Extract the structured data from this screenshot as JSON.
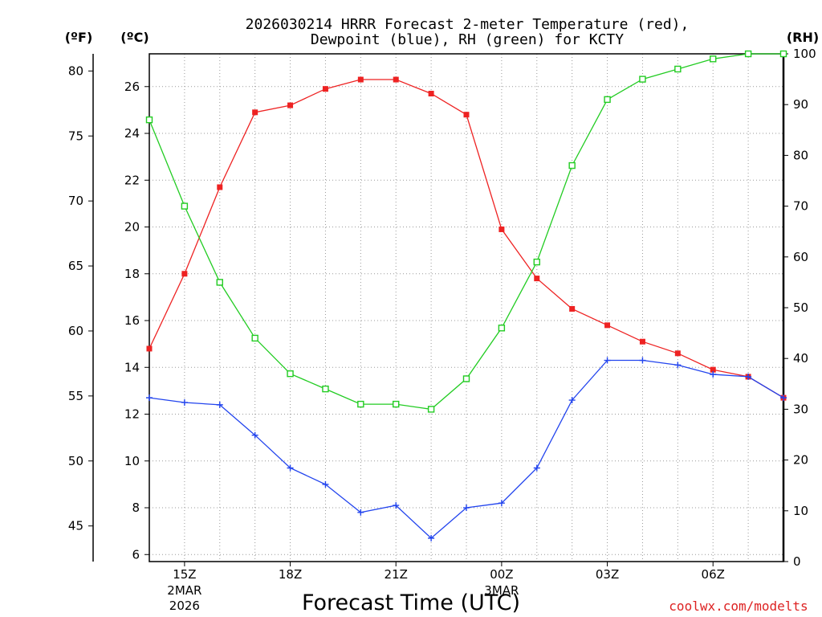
{
  "chart_data": {
    "type": "line",
    "title_line1": "2026030214 HRRR Forecast 2-meter Temperature (red),",
    "title_line2": "Dewpoint (blue), RH (green) for KCTY",
    "units": {
      "fahrenheit": "(ºF)",
      "celsius": "(ºC)",
      "rh": "(RH)"
    },
    "xlabel": "Forecast Time (UTC)",
    "credit": "coolwx.com/modelts",
    "x_hours": [
      14,
      15,
      16,
      17,
      18,
      19,
      20,
      21,
      22,
      23,
      24,
      25,
      26,
      27,
      28,
      29,
      30,
      31,
      32
    ],
    "xlim": [
      14,
      32
    ],
    "x_ticks": [
      {
        "hour": 15,
        "label": "15Z",
        "sub1": "2MAR",
        "sub2": "2026"
      },
      {
        "hour": 18,
        "label": "18Z",
        "sub1": "",
        "sub2": ""
      },
      {
        "hour": 21,
        "label": "21Z",
        "sub1": "",
        "sub2": ""
      },
      {
        "hour": 24,
        "label": "00Z",
        "sub1": "3MAR",
        "sub2": ""
      },
      {
        "hour": 27,
        "label": "03Z",
        "sub1": "",
        "sub2": ""
      },
      {
        "hour": 30,
        "label": "06Z",
        "sub1": "",
        "sub2": ""
      }
    ],
    "y_celsius": {
      "min": 5.7,
      "max": 27.4,
      "ticks": [
        6,
        8,
        10,
        12,
        14,
        16,
        18,
        20,
        22,
        24,
        26
      ]
    },
    "y_fahrenheit": {
      "ticks": [
        45,
        50,
        55,
        60,
        65,
        70,
        75,
        80
      ]
    },
    "y_rh": {
      "min": 0,
      "max": 100,
      "ticks": [
        0,
        10,
        20,
        30,
        40,
        50,
        60,
        70,
        80,
        90,
        100
      ]
    },
    "series": [
      {
        "name": "Temperature",
        "axis": "celsius",
        "color": "#ee2222",
        "marker": "filled-square",
        "values": [
          14.8,
          18.0,
          21.7,
          24.9,
          25.2,
          25.9,
          26.3,
          26.3,
          25.7,
          24.8,
          19.9,
          17.8,
          16.5,
          15.8,
          15.1,
          14.6,
          13.9,
          13.6,
          12.7
        ]
      },
      {
        "name": "Dewpoint",
        "axis": "celsius",
        "color": "#2244ee",
        "marker": "plus",
        "values": [
          12.7,
          12.5,
          12.4,
          11.1,
          9.7,
          9.0,
          7.8,
          8.1,
          6.7,
          8.0,
          8.2,
          9.7,
          12.6,
          14.3,
          14.3,
          14.1,
          13.7,
          13.6,
          12.7
        ]
      },
      {
        "name": "RH",
        "axis": "rh",
        "color": "#22cc22",
        "marker": "open-square",
        "values": [
          87,
          70,
          55,
          44,
          37,
          34,
          31,
          31,
          30,
          36,
          46,
          59,
          78,
          91,
          95,
          97,
          99,
          100,
          100
        ]
      }
    ]
  }
}
